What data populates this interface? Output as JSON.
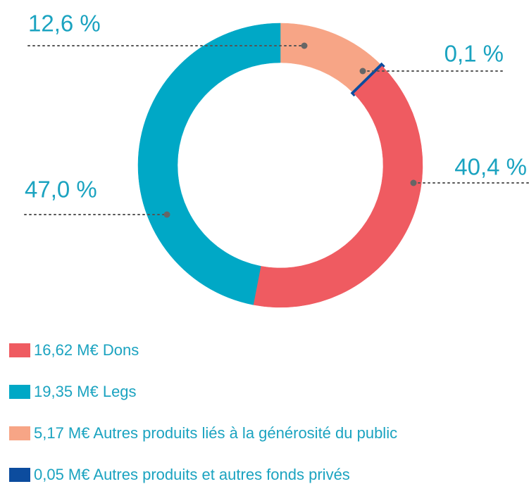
{
  "chart_data": {
    "type": "donut",
    "categories": [
      "16,62 M€ Dons",
      "19,35 M€ Legs",
      "5,17 M€ Autres produits liés à la générosité du public",
      "0,05 M€ Autres produits et autres fonds privés"
    ],
    "values": [
      40.4,
      47.0,
      12.6,
      0.1
    ],
    "value_labels": [
      "40,4 %",
      "47,0 %",
      "12,6 %",
      "0,1 %"
    ],
    "colors": [
      "#ef5b61",
      "#00a8c6",
      "#f7a586",
      "#0c4c9e"
    ]
  }
}
